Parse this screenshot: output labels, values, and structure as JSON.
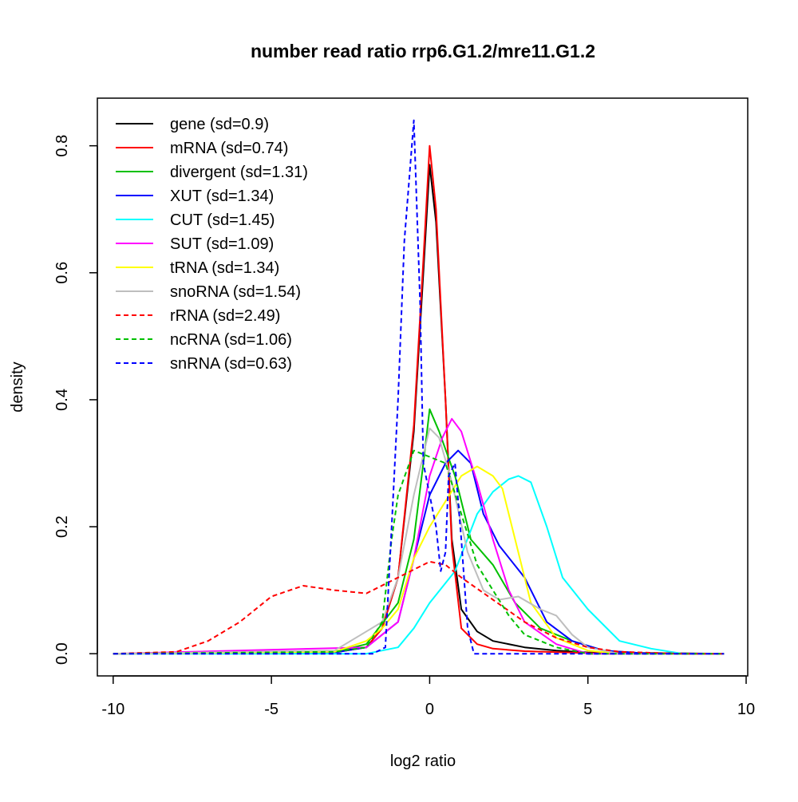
{
  "chart_data": {
    "type": "line",
    "title": "number read ratio rrp6.G1.2/mre11.G1.2",
    "xlabel": "log2 ratio",
    "ylabel": "density",
    "xlim": [
      -10.5,
      10.05
    ],
    "ylim": [
      -0.035,
      0.875
    ],
    "xticks": [
      -10,
      -5,
      0,
      5,
      10
    ],
    "xtick_labels": [
      "-10",
      "-5",
      "0",
      "5",
      "10"
    ],
    "yticks": [
      0,
      0.2,
      0.4,
      0.6,
      0.8
    ],
    "ytick_labels": [
      "0.0",
      "0.2",
      "0.4",
      "0.6",
      "0.8"
    ],
    "legend_position": "top-left",
    "series": [
      {
        "name": "gene (sd=0.9)",
        "color": "#000000",
        "dash": false,
        "points": [
          [
            -10,
            0
          ],
          [
            -3,
            0.003
          ],
          [
            -2,
            0.01
          ],
          [
            -1.5,
            0.04
          ],
          [
            -1,
            0.12
          ],
          [
            -0.5,
            0.35
          ],
          [
            -0.2,
            0.6
          ],
          [
            0,
            0.77
          ],
          [
            0.2,
            0.68
          ],
          [
            0.5,
            0.4
          ],
          [
            0.7,
            0.18
          ],
          [
            1,
            0.07
          ],
          [
            1.5,
            0.035
          ],
          [
            2,
            0.02
          ],
          [
            3,
            0.01
          ],
          [
            4,
            0.005
          ],
          [
            5,
            0.002
          ],
          [
            9.3,
            0
          ]
        ]
      },
      {
        "name": "mRNA (sd=0.74)",
        "color": "#ff0000",
        "dash": false,
        "points": [
          [
            -10,
            0
          ],
          [
            -3,
            0.002
          ],
          [
            -2,
            0.01
          ],
          [
            -1.5,
            0.04
          ],
          [
            -1,
            0.12
          ],
          [
            -0.5,
            0.36
          ],
          [
            -0.2,
            0.62
          ],
          [
            0,
            0.8
          ],
          [
            0.2,
            0.7
          ],
          [
            0.5,
            0.4
          ],
          [
            0.7,
            0.17
          ],
          [
            1,
            0.04
          ],
          [
            1.5,
            0.015
          ],
          [
            2,
            0.008
          ],
          [
            3,
            0.004
          ],
          [
            5,
            0.001
          ],
          [
            9.3,
            0
          ]
        ]
      },
      {
        "name": "divergent (sd=1.31)",
        "color": "#00c000",
        "dash": false,
        "points": [
          [
            -10,
            0
          ],
          [
            -3,
            0.003
          ],
          [
            -2,
            0.015
          ],
          [
            -1,
            0.08
          ],
          [
            -0.5,
            0.18
          ],
          [
            -0.2,
            0.3
          ],
          [
            0,
            0.385
          ],
          [
            0.3,
            0.35
          ],
          [
            0.8,
            0.28
          ],
          [
            1.3,
            0.18
          ],
          [
            2,
            0.14
          ],
          [
            2.7,
            0.08
          ],
          [
            3.5,
            0.04
          ],
          [
            4.5,
            0.02
          ],
          [
            5.5,
            0.005
          ],
          [
            7,
            0
          ],
          [
            9.3,
            0
          ]
        ]
      },
      {
        "name": "XUT (sd=1.34)",
        "color": "#0000ff",
        "dash": false,
        "points": [
          [
            -10,
            0
          ],
          [
            -3,
            0.002
          ],
          [
            -2,
            0.01
          ],
          [
            -1,
            0.05
          ],
          [
            0,
            0.25
          ],
          [
            0.5,
            0.3
          ],
          [
            0.9,
            0.32
          ],
          [
            1.3,
            0.3
          ],
          [
            1.7,
            0.22
          ],
          [
            2.2,
            0.17
          ],
          [
            3,
            0.12
          ],
          [
            3.7,
            0.05
          ],
          [
            4.5,
            0.02
          ],
          [
            5.5,
            0.005
          ],
          [
            7,
            0
          ],
          [
            9.3,
            0
          ]
        ]
      },
      {
        "name": "CUT (sd=1.45)",
        "color": "#00ffff",
        "dash": false,
        "points": [
          [
            -10,
            0
          ],
          [
            -2,
            0
          ],
          [
            -1,
            0.01
          ],
          [
            -0.5,
            0.04
          ],
          [
            0,
            0.08
          ],
          [
            0.8,
            0.13
          ],
          [
            1.5,
            0.22
          ],
          [
            2,
            0.255
          ],
          [
            2.5,
            0.275
          ],
          [
            2.8,
            0.28
          ],
          [
            3.2,
            0.27
          ],
          [
            3.7,
            0.2
          ],
          [
            4.2,
            0.12
          ],
          [
            5,
            0.07
          ],
          [
            6,
            0.02
          ],
          [
            7,
            0.008
          ],
          [
            8,
            0
          ],
          [
            9.3,
            0
          ]
        ]
      },
      {
        "name": "SUT (sd=1.09)",
        "color": "#ff00ff",
        "dash": false,
        "points": [
          [
            -10,
            0
          ],
          [
            -2,
            0.01
          ],
          [
            -1,
            0.05
          ],
          [
            -0.5,
            0.15
          ],
          [
            0,
            0.28
          ],
          [
            0.4,
            0.34
          ],
          [
            0.7,
            0.37
          ],
          [
            1,
            0.35
          ],
          [
            1.5,
            0.27
          ],
          [
            2,
            0.18
          ],
          [
            2.5,
            0.1
          ],
          [
            3,
            0.05
          ],
          [
            4,
            0.015
          ],
          [
            5,
            0
          ],
          [
            9.3,
            0
          ]
        ]
      },
      {
        "name": "tRNA (sd=1.34)",
        "color": "#ffff00",
        "dash": false,
        "points": [
          [
            -10,
            0
          ],
          [
            -3,
            0.003
          ],
          [
            -2,
            0.02
          ],
          [
            -1.5,
            0.04
          ],
          [
            -1,
            0.07
          ],
          [
            -0.5,
            0.15
          ],
          [
            0,
            0.2
          ],
          [
            0.5,
            0.24
          ],
          [
            1,
            0.28
          ],
          [
            1.5,
            0.295
          ],
          [
            2,
            0.28
          ],
          [
            2.3,
            0.26
          ],
          [
            2.7,
            0.18
          ],
          [
            3.2,
            0.08
          ],
          [
            4,
            0.025
          ],
          [
            5,
            0.005
          ],
          [
            6,
            0
          ],
          [
            9.3,
            0
          ]
        ]
      },
      {
        "name": "snoRNA (sd=1.54)",
        "color": "#bebebe",
        "dash": false,
        "points": [
          [
            -10,
            0
          ],
          [
            -3,
            0.005
          ],
          [
            -2,
            0.035
          ],
          [
            -1.5,
            0.05
          ],
          [
            -1,
            0.12
          ],
          [
            -0.5,
            0.25
          ],
          [
            0,
            0.355
          ],
          [
            0.3,
            0.34
          ],
          [
            0.7,
            0.27
          ],
          [
            1.2,
            0.16
          ],
          [
            1.7,
            0.1
          ],
          [
            2.2,
            0.085
          ],
          [
            2.8,
            0.09
          ],
          [
            3.5,
            0.07
          ],
          [
            4,
            0.06
          ],
          [
            4.5,
            0.03
          ],
          [
            5,
            0.01
          ],
          [
            6,
            0
          ],
          [
            9.3,
            0
          ]
        ]
      },
      {
        "name": "rRNA (sd=2.49)",
        "color": "#ff0000",
        "dash": true,
        "points": [
          [
            -10,
            0
          ],
          [
            -8,
            0.003
          ],
          [
            -7,
            0.02
          ],
          [
            -6,
            0.05
          ],
          [
            -5,
            0.09
          ],
          [
            -4,
            0.107
          ],
          [
            -3,
            0.1
          ],
          [
            -2,
            0.095
          ],
          [
            -1,
            0.12
          ],
          [
            0,
            0.145
          ],
          [
            0.5,
            0.14
          ],
          [
            1,
            0.12
          ],
          [
            2,
            0.085
          ],
          [
            3,
            0.05
          ],
          [
            4,
            0.025
          ],
          [
            5,
            0.01
          ],
          [
            6,
            0.003
          ],
          [
            8,
            0
          ],
          [
            9.3,
            0
          ]
        ]
      },
      {
        "name": "ncRNA (sd=1.06)",
        "color": "#00c000",
        "dash": true,
        "points": [
          [
            -10,
            0
          ],
          [
            -3,
            0.003
          ],
          [
            -2,
            0.01
          ],
          [
            -1.5,
            0.05
          ],
          [
            -1.2,
            0.18
          ],
          [
            -1,
            0.25
          ],
          [
            -0.5,
            0.32
          ],
          [
            0,
            0.31
          ],
          [
            0.5,
            0.3
          ],
          [
            1,
            0.22
          ],
          [
            1.5,
            0.14
          ],
          [
            2,
            0.1
          ],
          [
            2.5,
            0.06
          ],
          [
            3,
            0.03
          ],
          [
            4,
            0.01
          ],
          [
            5,
            0
          ],
          [
            9.3,
            0
          ]
        ]
      },
      {
        "name": "snRNA (sd=0.63)",
        "color": "#0000ff",
        "dash": true,
        "points": [
          [
            -10,
            0
          ],
          [
            -1.8,
            0
          ],
          [
            -1.4,
            0.01
          ],
          [
            -1.2,
            0.2
          ],
          [
            -1,
            0.4
          ],
          [
            -0.8,
            0.65
          ],
          [
            -0.5,
            0.84
          ],
          [
            -0.3,
            0.55
          ],
          [
            -0.2,
            0.3
          ],
          [
            0,
            0.25
          ],
          [
            0.2,
            0.2
          ],
          [
            0.35,
            0.13
          ],
          [
            0.5,
            0.16
          ],
          [
            0.6,
            0.28
          ],
          [
            0.8,
            0.3
          ],
          [
            1,
            0.18
          ],
          [
            1.2,
            0.04
          ],
          [
            1.4,
            0
          ],
          [
            9.3,
            0
          ]
        ]
      }
    ]
  }
}
